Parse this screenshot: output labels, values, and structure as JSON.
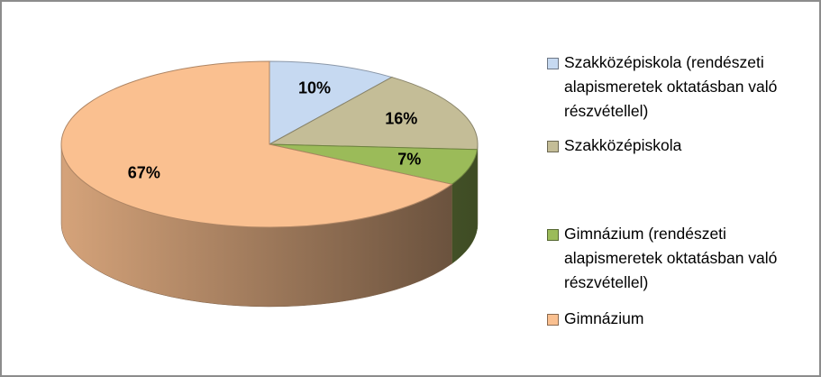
{
  "chart_data": {
    "type": "pie",
    "categories": [
      "Szakközépiskola (rendészeti alapismeretek oktatásban való részvétellel)",
      "Szakközépiskola",
      "Gimnázium (rendészeti alapismeretek oktatásban való részvétellel)",
      "Gimnázium"
    ],
    "values": [
      10,
      16,
      7,
      67
    ],
    "value_labels": [
      "10%",
      "16%",
      "7%",
      "67%"
    ],
    "colors": [
      "#c6d9f1",
      "#c4bd97",
      "#9bbb59",
      "#fac090"
    ],
    "legend": "right"
  }
}
